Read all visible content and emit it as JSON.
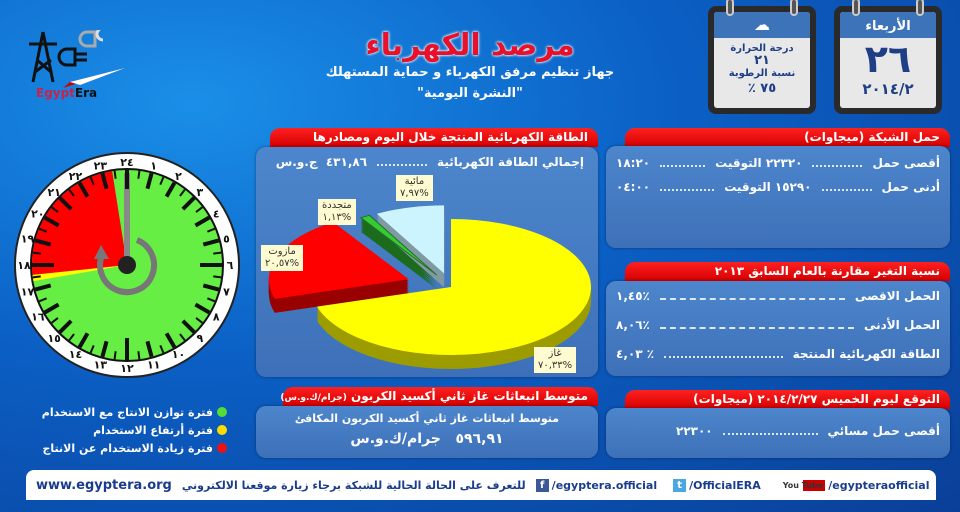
{
  "header": {
    "title": "مرصد الكهرباء",
    "subtitle": "جهاز تنظيم مرفق الكهرباء و حماية المستهلك",
    "bulletin": "\"النشرة اليومية\""
  },
  "logo": {
    "text_a": "Egypt",
    "text_b": "Era"
  },
  "date_calendar": {
    "day_name": "الأربعاء",
    "day": "٢٦",
    "month_year": "٢٠١٤/٢"
  },
  "weather_calendar": {
    "temp_label": "درجة الحرارة",
    "temp": "٢١",
    "humidity_label": "نسبة الرطوبة",
    "humidity": "٪ ٧٥"
  },
  "grid_load": {
    "title": "حمل الشبكة (ميجاوات)",
    "rows": [
      {
        "label": "أقصى حمل",
        "value": "٢٢٣٢٠",
        "time_label": "التوقيت",
        "time": "١٨:٢٠"
      },
      {
        "label": "أدنى حمل",
        "value": "١٥٢٩٠",
        "time_label": "التوقيت",
        "time": "٠٤:٠٠"
      }
    ]
  },
  "change": {
    "title": "نسبة التغير مقارنة بالعام السابق ٢٠١٣",
    "rows": [
      {
        "label": "الحمل الاقصى",
        "value": "٪١,٤٥"
      },
      {
        "label": "الحمل الأدنى",
        "value": "٪٨,٠٦"
      },
      {
        "label": "الطاقة الكهربائية المنتجة",
        "value": "٪ ٤,٠٣"
      }
    ]
  },
  "forecast": {
    "title": "التوقع ليوم الخميس ٢٠١٤/٢/٢٧ (ميجاوات)",
    "label": "أقصى حمل مسائي",
    "value": "٢٢٣٠٠"
  },
  "energy": {
    "title": "الطاقة الكهربائية المنتجة خلال اليوم ومصادرها",
    "total_label": "إجمالي الطاقة الكهربائية",
    "total_value": "٤٣١,٨٦",
    "total_unit": "ج.و.س"
  },
  "chart_data": {
    "type": "pie",
    "title": "الطاقة الكهربائية المنتجة خلال اليوم ومصادرها",
    "slices": [
      {
        "name": "غاز",
        "value": 70.33,
        "label": "%٧٠,٣٣",
        "color": "#ffff00"
      },
      {
        "name": "مازوت",
        "value": 20.57,
        "label": "%٢٠,٥٧",
        "color": "#ff0000"
      },
      {
        "name": "متجددة",
        "value": 1.13,
        "label": "%١,١٣",
        "color": "#33cc33"
      },
      {
        "name": "مائية",
        "value": 7.97,
        "label": "%٧,٩٧",
        "color": "#ccf4ff"
      }
    ]
  },
  "co2": {
    "title": "متوسط انبعاثات غاز ثاني أكسيد الكربون",
    "unit_note": "(جرام/ك.و.س)",
    "label": "متوسط انبعاثات غاز ثاني أكسيد الكربون المكافئ",
    "value": "٥٩٦,٩١",
    "unit": "جرام/ك.و.س"
  },
  "clock": {
    "numbers": [
      "٢٤",
      "١",
      "٢",
      "٣",
      "٤",
      "٥",
      "٦",
      "٧",
      "٨",
      "٩",
      "١٠",
      "١١",
      "١٢",
      "١٣",
      "١٤",
      "١٥",
      "١٦",
      "١٧",
      "١٨",
      "١٩",
      "٢٠",
      "٢١",
      "٢٢",
      "٢٣"
    ],
    "red_period_hours": [
      17.6,
      23.4
    ],
    "yellow_period_hours": [
      17.35,
      17.6
    ],
    "colors": {
      "green": "#66ee44",
      "yellow": "#ffff00",
      "red": "#ff0000"
    }
  },
  "legend": [
    {
      "label": "فترة توازن الانتاج مع الاستخدام",
      "color": "#55dd33"
    },
    {
      "label": "فترة أرتفاع الاستخدام",
      "color": "#ffdd00"
    },
    {
      "label": "فترة زيادة الاستخدام عن الانتاج",
      "color": "#ee1111"
    }
  ],
  "footer": {
    "website": "www.egyptera.org",
    "message": "للتعرف على الحالة الحالية للشبكة برجاء زيارة موقعنا الالكتروني",
    "facebook": "/egyptera.official",
    "twitter": "/OfficialERA",
    "youtube": "/egypteraofficial",
    "youtube_logo": "You Tube"
  }
}
